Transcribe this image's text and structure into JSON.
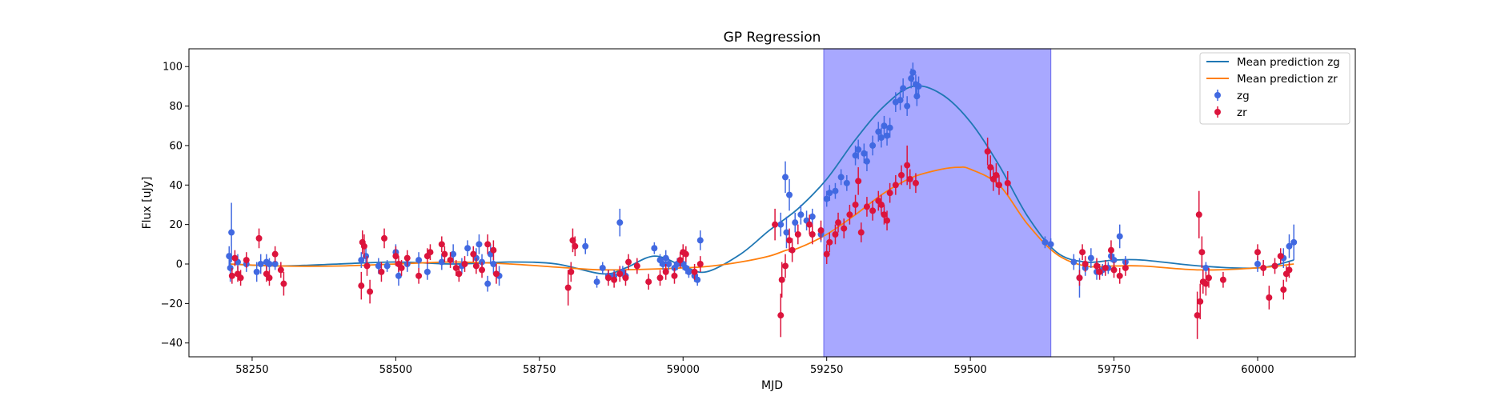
{
  "chart_data": {
    "type": "scatter",
    "title": "GP Regression",
    "xlabel": "MJD",
    "ylabel": "Flux [uJy]",
    "xlim": [
      58140,
      60170
    ],
    "ylim": [
      -47,
      109
    ],
    "xticks": [
      58250,
      58500,
      58750,
      59000,
      59250,
      59500,
      59750,
      60000
    ],
    "yticks": [
      -40,
      -20,
      0,
      20,
      40,
      60,
      80,
      100
    ],
    "grid": false,
    "legend_position": "top-right",
    "highlight_region": {
      "x": [
        59245,
        59640
      ],
      "color": "#a8a8ff"
    },
    "series": [
      {
        "name": "Mean prediction zg",
        "kind": "line",
        "color": "#1f77b4",
        "x": [
          58210,
          58300,
          58400,
          58500,
          58600,
          58700,
          58780,
          58860,
          58900,
          58950,
          59000,
          59040,
          59100,
          59150,
          59200,
          59250,
          59300,
          59350,
          59400,
          59450,
          59500,
          59550,
          59600,
          59650,
          59700,
          59750,
          59800,
          59900,
          60000,
          60063
        ],
        "y": [
          0,
          -1,
          0,
          1,
          0,
          1,
          0,
          -5,
          -2,
          4,
          -1,
          -4,
          5,
          17,
          28,
          43,
          63,
          80,
          90,
          86,
          72,
          50,
          24,
          6,
          1,
          2,
          2,
          -1,
          -2,
          2
        ]
      },
      {
        "name": "Mean prediction zr",
        "kind": "line",
        "color": "#ff7f0e",
        "x": [
          58210,
          58300,
          58400,
          58500,
          58600,
          58700,
          58800,
          58870,
          59000,
          59050,
          59100,
          59150,
          59180,
          59200,
          59250,
          59300,
          59350,
          59400,
          59450,
          59480,
          59500,
          59550,
          59600,
          59650,
          59700,
          59750,
          59800,
          59900,
          60000,
          60063
        ],
        "y": [
          0,
          -1,
          -1,
          0,
          1,
          0,
          -2,
          -3,
          -2,
          -1,
          1,
          4,
          7,
          8,
          15,
          25,
          36,
          44,
          48,
          49,
          48,
          40,
          20,
          5,
          -1,
          -1,
          -1,
          -3,
          -2,
          0
        ]
      },
      {
        "name": "zg",
        "kind": "errorbar",
        "color": "#4169e1",
        "points": [
          [
            58210,
            4,
            5
          ],
          [
            58212,
            -2,
            7
          ],
          [
            58214,
            16,
            15
          ],
          [
            58225,
            1,
            4
          ],
          [
            58240,
            0,
            4
          ],
          [
            58258,
            -4,
            5
          ],
          [
            58265,
            0,
            5
          ],
          [
            58275,
            1,
            4
          ],
          [
            58280,
            0,
            3
          ],
          [
            58290,
            0,
            3
          ],
          [
            58440,
            2,
            4
          ],
          [
            58448,
            4,
            5
          ],
          [
            58470,
            -1,
            4
          ],
          [
            58485,
            -1,
            3
          ],
          [
            58500,
            6,
            4
          ],
          [
            58505,
            -6,
            5
          ],
          [
            58520,
            0,
            4
          ],
          [
            58540,
            2,
            4
          ],
          [
            58555,
            -4,
            4
          ],
          [
            58580,
            1,
            4
          ],
          [
            58600,
            5,
            5
          ],
          [
            58615,
            -1,
            4
          ],
          [
            58625,
            8,
            4
          ],
          [
            58640,
            3,
            5
          ],
          [
            58645,
            10,
            5
          ],
          [
            58650,
            1,
            4
          ],
          [
            58660,
            -10,
            4
          ],
          [
            58665,
            5,
            5
          ],
          [
            58670,
            0,
            5
          ],
          [
            58680,
            -6,
            5
          ],
          [
            58830,
            9,
            4
          ],
          [
            58850,
            -9,
            3
          ],
          [
            58860,
            -2,
            3
          ],
          [
            58870,
            -6,
            3
          ],
          [
            58880,
            -6,
            3
          ],
          [
            58890,
            21,
            7
          ],
          [
            58895,
            -4,
            3
          ],
          [
            58900,
            -6,
            3
          ],
          [
            58950,
            8,
            3
          ],
          [
            58960,
            2,
            3
          ],
          [
            58965,
            0,
            3
          ],
          [
            58970,
            3,
            4
          ],
          [
            58975,
            0,
            3
          ],
          [
            58985,
            -2,
            3
          ],
          [
            58990,
            0,
            3
          ],
          [
            59000,
            0,
            3
          ],
          [
            59005,
            -2,
            3
          ],
          [
            59010,
            -4,
            3
          ],
          [
            59020,
            -6,
            3
          ],
          [
            59025,
            -8,
            3
          ],
          [
            59030,
            12,
            5
          ],
          [
            59170,
            20,
            6
          ],
          [
            59178,
            44,
            8
          ],
          [
            59180,
            16,
            8
          ],
          [
            59185,
            35,
            8
          ],
          [
            59195,
            21,
            5
          ],
          [
            59205,
            25,
            5
          ],
          [
            59215,
            22,
            5
          ],
          [
            59225,
            24,
            4
          ],
          [
            59240,
            15,
            4
          ],
          [
            59250,
            33,
            4
          ],
          [
            59255,
            36,
            4
          ],
          [
            59265,
            37,
            4
          ],
          [
            59275,
            44,
            4
          ],
          [
            59285,
            41,
            4
          ],
          [
            59300,
            55,
            5
          ],
          [
            59305,
            58,
            5
          ],
          [
            59315,
            56,
            5
          ],
          [
            59320,
            52,
            5
          ],
          [
            59330,
            60,
            5
          ],
          [
            59340,
            67,
            5
          ],
          [
            59345,
            64,
            5
          ],
          [
            59350,
            70,
            5
          ],
          [
            59355,
            65,
            5
          ],
          [
            59360,
            69,
            5
          ],
          [
            59370,
            82,
            5
          ],
          [
            59378,
            83,
            5
          ],
          [
            59383,
            89,
            5
          ],
          [
            59390,
            80,
            5
          ],
          [
            59397,
            94,
            5
          ],
          [
            59400,
            97,
            5
          ],
          [
            59405,
            91,
            5
          ],
          [
            59407,
            85,
            5
          ],
          [
            59410,
            90,
            5
          ],
          [
            59630,
            11,
            3
          ],
          [
            59640,
            10,
            3
          ],
          [
            59680,
            1,
            4
          ],
          [
            59690,
            -7,
            10
          ],
          [
            59700,
            -2,
            4
          ],
          [
            59710,
            3,
            5
          ],
          [
            59720,
            -4,
            4
          ],
          [
            59730,
            -3,
            3
          ],
          [
            59740,
            -2,
            3
          ],
          [
            59745,
            4,
            3
          ],
          [
            59750,
            2,
            3
          ],
          [
            59760,
            14,
            6
          ],
          [
            59770,
            1,
            3
          ],
          [
            59910,
            -2,
            3
          ],
          [
            60000,
            0,
            4
          ],
          [
            60045,
            3,
            5
          ],
          [
            60055,
            9,
            6
          ],
          [
            60063,
            11,
            9
          ]
        ]
      },
      {
        "name": "zr",
        "kind": "errorbar",
        "color": "#dc143c",
        "points": [
          [
            58215,
            -6,
            4
          ],
          [
            58220,
            3,
            4
          ],
          [
            58225,
            -5,
            4
          ],
          [
            58230,
            -7,
            4
          ],
          [
            58240,
            2,
            4
          ],
          [
            58262,
            13,
            5
          ],
          [
            58275,
            -5,
            4
          ],
          [
            58280,
            -7,
            4
          ],
          [
            58290,
            5,
            4
          ],
          [
            58300,
            -3,
            4
          ],
          [
            58305,
            -10,
            6
          ],
          [
            58440,
            -11,
            7
          ],
          [
            58442,
            11,
            6
          ],
          [
            58445,
            9,
            6
          ],
          [
            58450,
            -1,
            5
          ],
          [
            58455,
            -14,
            6
          ],
          [
            58475,
            -4,
            5
          ],
          [
            58480,
            13,
            5
          ],
          [
            58500,
            4,
            5
          ],
          [
            58505,
            0,
            4
          ],
          [
            58510,
            -2,
            4
          ],
          [
            58520,
            3,
            4
          ],
          [
            58540,
            -6,
            4
          ],
          [
            58555,
            4,
            4
          ],
          [
            58560,
            6,
            4
          ],
          [
            58580,
            10,
            4
          ],
          [
            58585,
            5,
            4
          ],
          [
            58595,
            2,
            4
          ],
          [
            58605,
            -2,
            4
          ],
          [
            58610,
            -5,
            4
          ],
          [
            58620,
            0,
            4
          ],
          [
            58635,
            5,
            4
          ],
          [
            58640,
            -1,
            4
          ],
          [
            58650,
            -3,
            4
          ],
          [
            58660,
            10,
            5
          ],
          [
            58670,
            7,
            5
          ],
          [
            58675,
            -5,
            5
          ],
          [
            58800,
            -12,
            9
          ],
          [
            58805,
            -4,
            5
          ],
          [
            58808,
            12,
            6
          ],
          [
            58812,
            9,
            5
          ],
          [
            58870,
            -7,
            4
          ],
          [
            58880,
            -8,
            4
          ],
          [
            58890,
            -5,
            4
          ],
          [
            58900,
            -7,
            4
          ],
          [
            58905,
            1,
            4
          ],
          [
            58920,
            -1,
            4
          ],
          [
            58940,
            -9,
            4
          ],
          [
            58960,
            -7,
            4
          ],
          [
            58970,
            -4,
            4
          ],
          [
            58985,
            -6,
            4
          ],
          [
            58995,
            2,
            4
          ],
          [
            59000,
            6,
            4
          ],
          [
            59005,
            5,
            4
          ],
          [
            59020,
            -4,
            4
          ],
          [
            59030,
            0,
            4
          ],
          [
            59160,
            20,
            8
          ],
          [
            59170,
            -26,
            11
          ],
          [
            59172,
            -8,
            9
          ],
          [
            59178,
            -1,
            6
          ],
          [
            59185,
            12,
            6
          ],
          [
            59190,
            7,
            6
          ],
          [
            59200,
            15,
            5
          ],
          [
            59220,
            20,
            5
          ],
          [
            59225,
            15,
            5
          ],
          [
            59240,
            17,
            5
          ],
          [
            59250,
            5,
            5
          ],
          [
            59255,
            11,
            5
          ],
          [
            59265,
            15,
            5
          ],
          [
            59270,
            21,
            5
          ],
          [
            59280,
            18,
            5
          ],
          [
            59290,
            25,
            5
          ],
          [
            59300,
            30,
            5
          ],
          [
            59305,
            42,
            7
          ],
          [
            59310,
            16,
            5
          ],
          [
            59320,
            29,
            5
          ],
          [
            59330,
            27,
            5
          ],
          [
            59340,
            32,
            5
          ],
          [
            59345,
            30,
            5
          ],
          [
            59350,
            25,
            5
          ],
          [
            59355,
            22,
            5
          ],
          [
            59360,
            36,
            5
          ],
          [
            59370,
            40,
            5
          ],
          [
            59380,
            45,
            5
          ],
          [
            59390,
            50,
            10
          ],
          [
            59395,
            43,
            5
          ],
          [
            59405,
            41,
            5
          ],
          [
            59530,
            57,
            7
          ],
          [
            59535,
            49,
            6
          ],
          [
            59540,
            43,
            6
          ],
          [
            59545,
            45,
            6
          ],
          [
            59550,
            40,
            5
          ],
          [
            59565,
            41,
            6
          ],
          [
            59690,
            -7,
            4
          ],
          [
            59695,
            6,
            4
          ],
          [
            59700,
            0,
            4
          ],
          [
            59720,
            -1,
            4
          ],
          [
            59725,
            -4,
            4
          ],
          [
            59735,
            -2,
            4
          ],
          [
            59745,
            7,
            5
          ],
          [
            59750,
            -3,
            4
          ],
          [
            59760,
            -6,
            4
          ],
          [
            59770,
            -2,
            4
          ],
          [
            59895,
            -26,
            12
          ],
          [
            59898,
            25,
            12
          ],
          [
            59900,
            -19,
            9
          ],
          [
            59903,
            6,
            8
          ],
          [
            59905,
            -9,
            6
          ],
          [
            59910,
            -10,
            6
          ],
          [
            59915,
            -7,
            5
          ],
          [
            59940,
            -8,
            4
          ],
          [
            60000,
            6,
            4
          ],
          [
            60010,
            -2,
            4
          ],
          [
            60020,
            -17,
            6
          ],
          [
            60030,
            -1,
            4
          ],
          [
            60040,
            4,
            4
          ],
          [
            60045,
            -13,
            5
          ],
          [
            60050,
            -5,
            4
          ],
          [
            60055,
            -3,
            4
          ]
        ]
      }
    ]
  }
}
